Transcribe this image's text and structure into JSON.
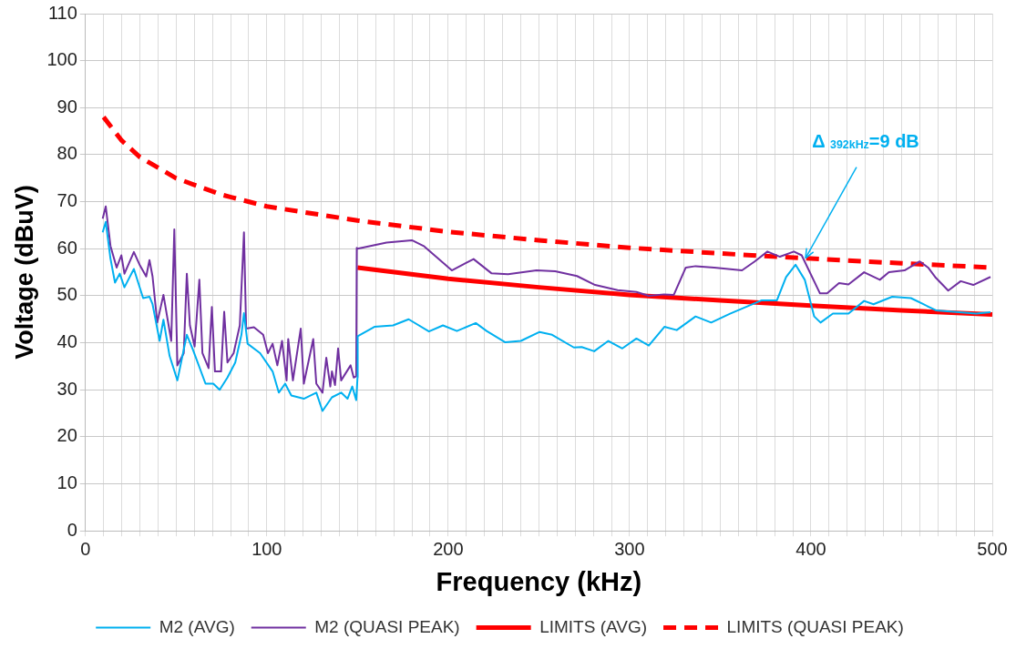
{
  "chart_data": {
    "type": "line",
    "xlabel": "Frequency (kHz)",
    "ylabel": "Voltage (dBuV)",
    "xlim": [
      0,
      500
    ],
    "ylim": [
      0,
      110
    ],
    "xticks": [
      0,
      {
        "value": 10,
        "label": null
      },
      {
        "value": 20,
        "label": null
      },
      {
        "value": 30,
        "label": null
      },
      {
        "value": 40,
        "label": null
      },
      {
        "value": 50,
        "label": null
      },
      {
        "value": 60,
        "label": null
      },
      {
        "value": 70,
        "label": null
      },
      {
        "value": 80,
        "label": null
      },
      {
        "value": 90,
        "label": null
      },
      100,
      {
        "value": 110,
        "label": null
      },
      {
        "value": 120,
        "label": null
      },
      {
        "value": 130,
        "label": null
      },
      {
        "value": 140,
        "label": null
      },
      {
        "value": 150,
        "label": null
      },
      {
        "value": 160,
        "label": null
      },
      {
        "value": 170,
        "label": null
      },
      {
        "value": 180,
        "label": null
      },
      {
        "value": 190,
        "label": null
      },
      200,
      {
        "value": 210,
        "label": null
      },
      {
        "value": 220,
        "label": null
      },
      {
        "value": 230,
        "label": null
      },
      {
        "value": 240,
        "label": null
      },
      {
        "value": 250,
        "label": null
      },
      {
        "value": 260,
        "label": null
      },
      {
        "value": 270,
        "label": null
      },
      {
        "value": 280,
        "label": null
      },
      {
        "value": 290,
        "label": null
      },
      300,
      {
        "value": 310,
        "label": null
      },
      {
        "value": 320,
        "label": null
      },
      {
        "value": 330,
        "label": null
      },
      {
        "value": 340,
        "label": null
      },
      {
        "value": 350,
        "label": null
      },
      {
        "value": 360,
        "label": null
      },
      {
        "value": 370,
        "label": null
      },
      {
        "value": 380,
        "label": null
      },
      {
        "value": 390,
        "label": null
      },
      400,
      {
        "value": 410,
        "label": null
      },
      {
        "value": 420,
        "label": null
      },
      {
        "value": 430,
        "label": null
      },
      {
        "value": 440,
        "label": null
      },
      {
        "value": 450,
        "label": null
      },
      {
        "value": 460,
        "label": null
      },
      {
        "value": 470,
        "label": null
      },
      {
        "value": 480,
        "label": null
      },
      {
        "value": 490,
        "label": null
      },
      500
    ],
    "yticks": [
      0,
      10,
      20,
      30,
      40,
      50,
      60,
      70,
      80,
      90,
      100,
      110
    ],
    "grid": true,
    "legend": "bottom",
    "marker": "none",
    "series": [
      {
        "name": "M2 (AVG)",
        "color": "#00b0f0",
        "line_style": "solid",
        "x": [
          9.5,
          11.2,
          13.8,
          16.3,
          18.9,
          21.5,
          26.7,
          31.8,
          35.3,
          37,
          40.9,
          43,
          46.4,
          50.7,
          55.9,
          59.3,
          66.2,
          70.5,
          74,
          78.3,
          82.6,
          86,
          87.4,
          89.4,
          96.3,
          103.2,
          106.6,
          110.1,
          113.5,
          120.4,
          127.3,
          130.7,
          135.9,
          141,
          144.5,
          147.1,
          149.3,
          150,
          150.1,
          159.3,
          169.6,
          178.2,
          189.4,
          197.1,
          204.8,
          215.2,
          221.2,
          231.5,
          240.1,
          250.4,
          257.3,
          269.3,
          273.6,
          280.5,
          288.3,
          296,
          303.8,
          310.6,
          319.2,
          326,
          336.4,
          345,
          355.4,
          372.6,
          381.2,
          386.3,
          391.5,
          396.6,
          401.8,
          405.3,
          412.1,
          420.7,
          429.3,
          434.5,
          444.8,
          455.1,
          462,
          468.9,
          491.2,
          499
        ],
        "values": [
          63.5,
          65.7,
          57.9,
          52.8,
          54.7,
          51.8,
          55.7,
          49.5,
          49.8,
          48.2,
          40.4,
          44.9,
          37.2,
          32,
          41.7,
          38.5,
          31.3,
          31.3,
          30,
          32.6,
          35.8,
          41.7,
          46.3,
          39.8,
          37.8,
          33.9,
          29.4,
          31.3,
          28.8,
          28.1,
          29.4,
          25.5,
          28.4,
          29.4,
          28.1,
          30.7,
          27.8,
          32.6,
          41.4,
          43.4,
          43.7,
          45,
          42.4,
          43.7,
          42.5,
          44.2,
          42.5,
          40.1,
          40.4,
          42.3,
          41.7,
          39,
          39.1,
          38.2,
          40.4,
          38.8,
          40.9,
          39.4,
          43.4,
          42.7,
          45.6,
          44.3,
          46.2,
          49,
          49,
          54,
          56.6,
          53.4,
          45.6,
          44.3,
          46.2,
          46.2,
          48.9,
          48.2,
          49.8,
          49.5,
          48.2,
          46.9,
          46.2,
          46.5
        ]
      },
      {
        "name": "M2 (QUASI PEAK)",
        "color": "#7030a0",
        "line_style": "solid",
        "x": [
          9.5,
          11.2,
          13.8,
          17.2,
          19.8,
          21.5,
          26.7,
          30.1,
          33.5,
          35.3,
          37,
          39.6,
          43,
          45.6,
          47.3,
          49,
          50.7,
          54.2,
          55.9,
          57.6,
          60.2,
          62.8,
          64.5,
          67.9,
          69.7,
          71.4,
          74.8,
          76.5,
          78.3,
          81.7,
          85.1,
          87.4,
          88.6,
          92.9,
          98,
          100.6,
          103.2,
          105.8,
          108.4,
          110.9,
          111.8,
          114.4,
          118.7,
          120.4,
          125.6,
          127.3,
          130.7,
          132.8,
          135,
          135.9,
          137.6,
          139.3,
          141,
          146.2,
          147.9,
          149.3,
          149.6,
          150,
          166,
          180,
          186.8,
          202,
          214,
          223.8,
          233,
          248.7,
          259,
          271,
          281,
          293.4,
          303.8,
          310.6,
          319,
          324.4,
          331,
          336.4,
          346.7,
          362,
          369,
          376,
          382.9,
          390.6,
          394.9,
          405,
          408.9,
          415.5,
          420.7,
          429.3,
          438,
          443,
          451.6,
          460,
          464.6,
          468.9,
          475.7,
          482.6,
          489.5,
          499
        ],
        "values": [
          66.4,
          69,
          60.6,
          56,
          58.6,
          54.7,
          59.3,
          56.4,
          54.1,
          57.6,
          54.1,
          44.3,
          50.2,
          44.3,
          40.4,
          64.1,
          35.2,
          37.8,
          54.7,
          43.7,
          39.2,
          53.4,
          37.8,
          34.6,
          47.6,
          33.9,
          33.9,
          46.6,
          35.8,
          37.8,
          43.7,
          63.5,
          43,
          43.3,
          41.7,
          37.8,
          39.8,
          35.2,
          40.4,
          32,
          40.8,
          32,
          43,
          31.3,
          40.8,
          31.3,
          29.4,
          36.8,
          30.7,
          33.9,
          31,
          38.8,
          32,
          35.2,
          32.6,
          32.9,
          60.2,
          60,
          61.3,
          61.8,
          60.5,
          55.4,
          57.8,
          54.8,
          54.6,
          55.4,
          55.2,
          54.2,
          52.3,
          51.2,
          50.8,
          50,
          50.3,
          50.2,
          56,
          56.3,
          56,
          55.4,
          57.3,
          59.4,
          58.3,
          59.4,
          58.6,
          50.5,
          50.5,
          52.7,
          52.4,
          55,
          53.4,
          55,
          55.4,
          57.3,
          56,
          53.8,
          51.1,
          53.1,
          52.3,
          54
        ]
      },
      {
        "name": "LIMITS (AVG)",
        "color": "#ff0000",
        "line_style": "solid",
        "x": [
          150,
          200,
          250,
          300,
          350,
          400,
          450,
          500
        ],
        "values": [
          56,
          53.6,
          51.8,
          50.2,
          49,
          47.9,
          46.9,
          46
        ]
      },
      {
        "name": "LIMITS (QUASI PEAK)",
        "color": "#ff0000",
        "line_style": "dashed",
        "x": [
          10,
          20,
          30,
          50,
          75,
          100,
          150,
          200,
          250,
          300,
          350,
          400,
          450,
          500
        ],
        "values": [
          88,
          83,
          79.5,
          75,
          71.5,
          69,
          66,
          63.6,
          61.8,
          60.2,
          59,
          57.9,
          56.9,
          56
        ]
      }
    ],
    "annotations": [
      {
        "text": "Δ $_{392kHz}$=9 dB",
        "x": 397,
        "y": 58
      }
    ]
  }
}
